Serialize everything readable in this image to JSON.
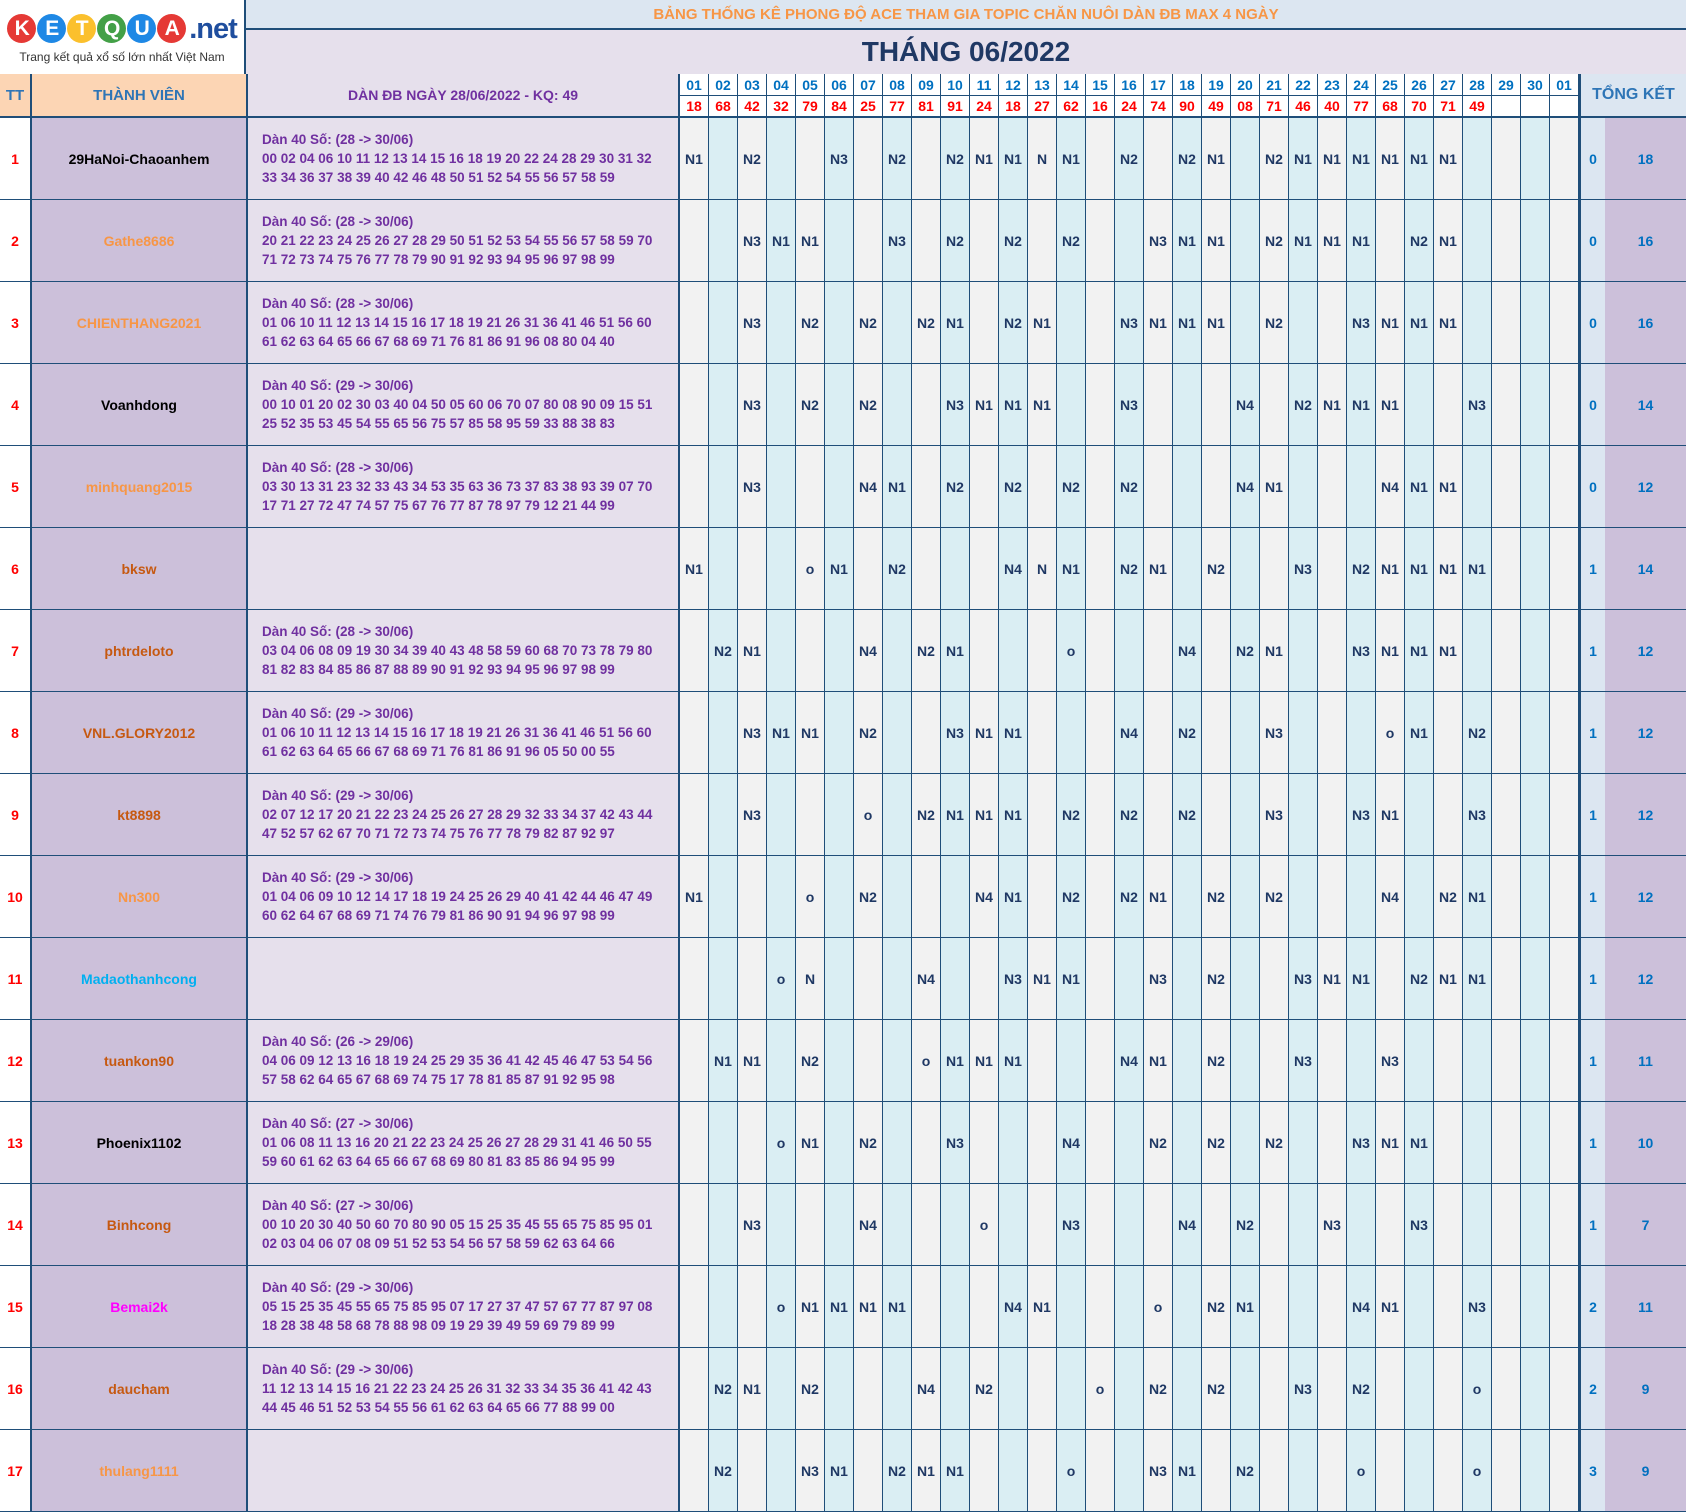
{
  "logo": {
    "ball_letters": [
      "K",
      "E",
      "T",
      "Q",
      "U",
      "A"
    ],
    "ball_colors": [
      "#e53935",
      "#1e88e5",
      "#fbc02d",
      "#43a047",
      "#1e88e5",
      "#e53935"
    ],
    "domain": ".net",
    "tagline": "Trang kết quả xổ số lớn nhất Việt Nam"
  },
  "title": "BẢNG THỐNG KÊ PHONG ĐỘ ACE THAM GIA TOPIC CHĂN NUÔI DÀN ĐB MAX 4 NGÀY",
  "month": "THÁNG 06/2022",
  "headers": {
    "tt": "TT",
    "member": "THÀNH VIÊN",
    "dan": "DÀN ĐB NGÀY 28/06/2022 - KQ: 49",
    "summary": "TỔNG KẾT"
  },
  "days": [
    "01",
    "02",
    "03",
    "04",
    "05",
    "06",
    "07",
    "08",
    "09",
    "10",
    "11",
    "12",
    "13",
    "14",
    "15",
    "16",
    "17",
    "18",
    "19",
    "20",
    "21",
    "22",
    "23",
    "24",
    "25",
    "26",
    "27",
    "28",
    "29",
    "30",
    "01"
  ],
  "results": [
    "18",
    "68",
    "42",
    "32",
    "79",
    "84",
    "25",
    "77",
    "81",
    "91",
    "24",
    "18",
    "27",
    "62",
    "16",
    "24",
    "74",
    "90",
    "49",
    "08",
    "71",
    "46",
    "40",
    "77",
    "68",
    "70",
    "71",
    "49",
    "",
    "",
    ""
  ],
  "rows": [
    {
      "tt": "1",
      "name": "29HaNoi-Chaoanhem",
      "color": "#000000",
      "dan_title": "Dàn 40 Số: (28 -> 30/06)",
      "line1": "00 02 04 06 10 11 12 13 14 15 16 18 19 20 22 24 28 29 30 31 32",
      "line2": "33 34 36 37 38 39 40 42 46 48 50 51 52 54 55 56 57 58 59",
      "stats": [
        "N1",
        "",
        "N2",
        "",
        "",
        "N3",
        "",
        "N2",
        "",
        "N2",
        "N1",
        "N1",
        "N",
        "N1",
        "",
        "N2",
        "",
        "N2",
        "N1",
        "",
        "N2",
        "N1",
        "N1",
        "N1",
        "N1",
        "N1",
        "N1",
        "",
        "",
        "",
        ""
      ],
      "a": "0",
      "b": "18"
    },
    {
      "tt": "2",
      "name": "Gathe8686",
      "color": "#f79646",
      "dan_title": "Dàn 40 Số: (28 -> 30/06)",
      "line1": "20 21 22 23 24 25 26 27 28 29 50 51 52 53 54 55 56 57 58 59 70",
      "line2": "71 72 73 74 75 76 77 78 79 90 91 92 93 94 95 96 97 98 99",
      "stats": [
        "",
        "",
        "N3",
        "N1",
        "N1",
        "",
        "",
        "N3",
        "",
        "N2",
        "",
        "N2",
        "",
        "N2",
        "",
        "",
        "N3",
        "N1",
        "N1",
        "",
        "N2",
        "N1",
        "N1",
        "N1",
        "",
        "N2",
        "N1",
        "",
        "",
        "",
        ""
      ],
      "a": "0",
      "b": "16"
    },
    {
      "tt": "3",
      "name": "CHIENTHANG2021",
      "color": "#f79646",
      "dan_title": "Dàn 40 Số: (28 -> 30/06)",
      "line1": "01 06 10 11 12 13 14 15 16 17 18 19 21 26 31 36 41 46 51 56 60",
      "line2": "61 62 63 64 65 66 67 68 69 71 76 81 86 91 96 08 80 04 40",
      "stats": [
        "",
        "",
        "N3",
        "",
        "N2",
        "",
        "N2",
        "",
        "N2",
        "N1",
        "",
        "N2",
        "N1",
        "",
        "",
        "N3",
        "N1",
        "N1",
        "N1",
        "",
        "N2",
        "",
        "",
        "N3",
        "N1",
        "N1",
        "N1",
        "",
        "",
        "",
        ""
      ],
      "a": "0",
      "b": "16"
    },
    {
      "tt": "4",
      "name": "Voanhdong",
      "color": "#000000",
      "dan_title": "Dàn 40 Số: (29 -> 30/06)",
      "line1": "00 10 01 20 02 30 03 40 04 50 05 60 06 70 07 80 08 90 09 15 51",
      "line2": "25 52 35 53 45 54 55 65 56 75 57 85 58 95 59 33 88 38 83",
      "stats": [
        "",
        "",
        "N3",
        "",
        "N2",
        "",
        "N2",
        "",
        "",
        "N3",
        "N1",
        "N1",
        "N1",
        "",
        "",
        "N3",
        "",
        "",
        "",
        "N4",
        "",
        "N2",
        "N1",
        "N1",
        "N1",
        "",
        "",
        "N3",
        "",
        "",
        ""
      ],
      "a": "0",
      "b": "14"
    },
    {
      "tt": "5",
      "name": "minhquang2015",
      "color": "#f79646",
      "dan_title": "Dàn 40 Số: (28 -> 30/06)",
      "line1": "03 30 13 31 23 32 33 43 34 53 35 63 36 73 37 83 38 93 39 07 70",
      "line2": "17 71 27 72 47 74 57 75 67 76 77 87 78 97 79 12 21 44 99",
      "stats": [
        "",
        "",
        "N3",
        "",
        "",
        "",
        "N4",
        "N1",
        "",
        "N2",
        "",
        "N2",
        "",
        "N2",
        "",
        "N2",
        "",
        "",
        "",
        "N4",
        "N1",
        "",
        "",
        "",
        "N4",
        "N1",
        "N1",
        "",
        "",
        "",
        ""
      ],
      "a": "0",
      "b": "12"
    },
    {
      "tt": "6",
      "name": "bksw",
      "color": "#c65911",
      "dan_title": "",
      "line1": "",
      "line2": "",
      "stats": [
        "N1",
        "",
        "",
        "",
        "o",
        "N1",
        "",
        "N2",
        "",
        "",
        "",
        "N4",
        "N",
        "N1",
        "",
        "N2",
        "N1",
        "",
        "N2",
        "",
        "",
        "N3",
        "",
        "N2",
        "N1",
        "N1",
        "N1",
        "N1",
        "",
        "",
        ""
      ],
      "a": "1",
      "b": "14"
    },
    {
      "tt": "7",
      "name": "phtrdeloto",
      "color": "#c65911",
      "dan_title": "Dàn 40 Số: (28 -> 30/06)",
      "line1": "03 04 06 08 09 19 30 34 39 40 43 48 58 59 60 68 70 73 78 79 80",
      "line2": "81 82 83 84 85 86 87 88 89 90 91 92 93 94 95 96 97 98 99",
      "stats": [
        "",
        "N2",
        "N1",
        "",
        "",
        "",
        "N4",
        "",
        "N2",
        "N1",
        "",
        "",
        "",
        "o",
        "",
        "",
        "",
        "N4",
        "",
        "N2",
        "N1",
        "",
        "",
        "N3",
        "N1",
        "N1",
        "N1",
        "",
        "",
        "",
        ""
      ],
      "a": "1",
      "b": "12"
    },
    {
      "tt": "8",
      "name": "VNL.GLORY2012",
      "color": "#c65911",
      "dan_title": "Dàn 40 Số: (29 -> 30/06)",
      "line1": "01 06 10 11 12 13 14 15 16 17 18 19 21 26 31 36 41 46 51 56 60",
      "line2": "61 62 63 64 65 66 67 68 69 71 76 81 86 91 96 05 50 00 55",
      "stats": [
        "",
        "",
        "N3",
        "N1",
        "N1",
        "",
        "N2",
        "",
        "",
        "N3",
        "N1",
        "N1",
        "",
        "",
        "",
        "N4",
        "",
        "N2",
        "",
        "",
        "N3",
        "",
        "",
        "",
        "o",
        "N1",
        "",
        "N2",
        "",
        "",
        ""
      ],
      "a": "1",
      "b": "12"
    },
    {
      "tt": "9",
      "name": "kt8898",
      "color": "#c65911",
      "dan_title": "Dàn 40 Số: (29 -> 30/06)",
      "line1": "02 07 12 17 20 21 22 23 24 25 26 27 28 29 32 33 34 37 42 43 44",
      "line2": "47 52 57 62 67 70 71 72 73 74 75 76 77 78 79 82 87 92 97",
      "stats": [
        "",
        "",
        "N3",
        "",
        "",
        "",
        "o",
        "",
        "N2",
        "N1",
        "N1",
        "N1",
        "",
        "N2",
        "",
        "N2",
        "",
        "N2",
        "",
        "",
        "N3",
        "",
        "",
        "N3",
        "N1",
        "",
        "",
        "N3",
        "",
        "",
        ""
      ],
      "a": "1",
      "b": "12"
    },
    {
      "tt": "10",
      "name": "Nn300",
      "color": "#f79646",
      "dan_title": "Dàn 40 Số: (29 -> 30/06)",
      "line1": "01 04 06 09 10 12 14 17 18 19 24 25 26 29 40 41 42 44 46 47 49",
      "line2": "60 62 64 67 68 69 71 74 76 79 81 86 90 91 94 96 97 98 99",
      "stats": [
        "N1",
        "",
        "",
        "",
        "o",
        "",
        "N2",
        "",
        "",
        "",
        "N4",
        "N1",
        "",
        "N2",
        "",
        "N2",
        "N1",
        "",
        "N2",
        "",
        "N2",
        "",
        "",
        "",
        "N4",
        "",
        "N2",
        "N1",
        "",
        "",
        ""
      ],
      "a": "1",
      "b": "12"
    },
    {
      "tt": "11",
      "name": "Madaothanhcong",
      "color": "#00b0f0",
      "dan_title": "",
      "line1": "",
      "line2": "",
      "stats": [
        "",
        "",
        "",
        "o",
        "N",
        "",
        "",
        "",
        "N4",
        "",
        "",
        "N3",
        "N1",
        "N1",
        "",
        "",
        "N3",
        "",
        "N2",
        "",
        "",
        "N3",
        "N1",
        "N1",
        "",
        "N2",
        "N1",
        "N1",
        "",
        "",
        ""
      ],
      "a": "1",
      "b": "12"
    },
    {
      "tt": "12",
      "name": "tuankon90",
      "color": "#c65911",
      "dan_title": "Dàn 40 Số: (26 -> 29/06)",
      "line1": "04 06 09 12 13 16 18 19 24 25 29 35 36 41 42 45 46 47 53 54 56",
      "line2": "57 58 62 64 65 67 68 69 74 75 17 78 81 85 87 91 92 95 98",
      "stats": [
        "",
        "N1",
        "N1",
        "",
        "N2",
        "",
        "",
        "",
        "o",
        "N1",
        "N1",
        "N1",
        "",
        "",
        "",
        "N4",
        "N1",
        "",
        "N2",
        "",
        "",
        "N3",
        "",
        "",
        "N3",
        "",
        "",
        "",
        "",
        "",
        ""
      ],
      "a": "1",
      "b": "11"
    },
    {
      "tt": "13",
      "name": "Phoenix1102",
      "color": "#000000",
      "dan_title": "Dàn 40 Số: (27 -> 30/06)",
      "line1": "01 06 08 11 13 16 20 21 22 23 24 25 26 27 28 29 31 41 46 50 55",
      "line2": "59 60 61 62 63 64 65 66 67 68 69 80 81 83 85 86 94 95 99",
      "stats": [
        "",
        "",
        "",
        "o",
        "N1",
        "",
        "N2",
        "",
        "",
        "N3",
        "",
        "",
        "",
        "N4",
        "",
        "",
        "N2",
        "",
        "N2",
        "",
        "N2",
        "",
        "",
        "N3",
        "N1",
        "N1",
        "",
        "",
        "",
        "",
        ""
      ],
      "a": "1",
      "b": "10"
    },
    {
      "tt": "14",
      "name": "Binhcong",
      "color": "#c65911",
      "dan_title": "Dàn 40 Số: (27 -> 30/06)",
      "line1": "00 10 20 30 40 50 60 70 80 90 05 15 25 35 45 55 65 75 85 95 01",
      "line2": "02 03 04 06 07 08 09 51 52 53 54 56 57 58 59 62 63 64 66",
      "stats": [
        "",
        "",
        "N3",
        "",
        "",
        "",
        "N4",
        "",
        "",
        "",
        "o",
        "",
        "",
        "N3",
        "",
        "",
        "",
        "N4",
        "",
        "N2",
        "",
        "",
        "N3",
        "",
        "",
        "N3",
        "",
        "",
        "",
        "",
        ""
      ],
      "a": "1",
      "b": "7"
    },
    {
      "tt": "15",
      "name": "Bemai2k",
      "color": "#ff00ff",
      "dan_title": "Dàn 40 Số: (29 -> 30/06)",
      "line1": "05 15 25 35 45 55 65 75 85 95 07 17 27 37 47 57 67 77 87 97 08",
      "line2": "18 28 38 48 58 68 78 88 98 09 19 29 39 49 59 69 79 89 99",
      "stats": [
        "",
        "",
        "",
        "o",
        "N1",
        "N1",
        "N1",
        "N1",
        "",
        "",
        "",
        "N4",
        "N1",
        "",
        "",
        "",
        "o",
        "",
        "N2",
        "N1",
        "",
        "",
        "",
        "N4",
        "N1",
        "",
        "",
        "N3",
        "",
        "",
        ""
      ],
      "a": "2",
      "b": "11"
    },
    {
      "tt": "16",
      "name": "daucham",
      "color": "#c65911",
      "dan_title": "Dàn 40 Số: (29 -> 30/06)",
      "line1": "11 12 13 14 15 16 21 22 23 24 25 26 31 32 33 34 35 36 41 42 43",
      "line2": "44 45 46 51 52 53 54 55 56 61 62 63 64 65 66 77 88 99 00",
      "stats": [
        "",
        "N2",
        "N1",
        "",
        "N2",
        "",
        "",
        "",
        "N4",
        "",
        "N2",
        "",
        "",
        "",
        "o",
        "",
        "N2",
        "",
        "N2",
        "",
        "",
        "N3",
        "",
        "N2",
        "",
        "",
        "",
        "o",
        "",
        "",
        ""
      ],
      "a": "2",
      "b": "9"
    },
    {
      "tt": "17",
      "name": "thulang1111",
      "color": "#f79646",
      "dan_title": "",
      "line1": "",
      "line2": "",
      "stats": [
        "",
        "N2",
        "",
        "",
        "N3",
        "N1",
        "",
        "N2",
        "N1",
        "N1",
        "",
        "",
        "",
        "o",
        "",
        "",
        "N3",
        "N1",
        "",
        "N2",
        "",
        "",
        "",
        "o",
        "",
        "",
        "",
        "o",
        "",
        "",
        ""
      ],
      "a": "3",
      "b": "9"
    }
  ]
}
